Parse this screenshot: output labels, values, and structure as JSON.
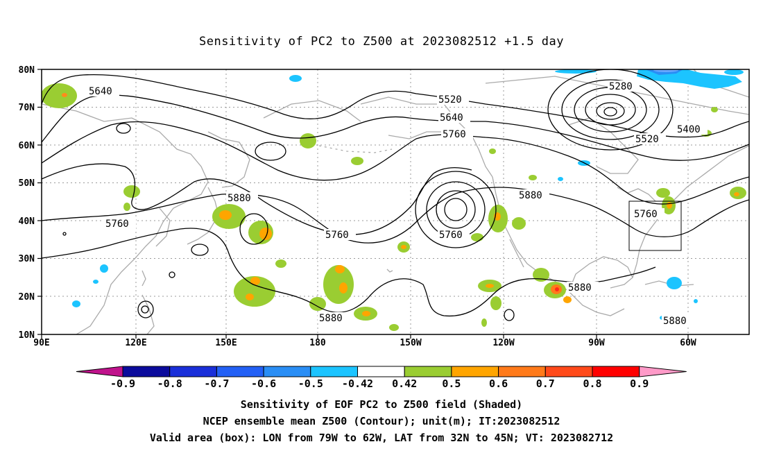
{
  "title": "Sensitivity of PC2 to Z500 at 2023082512 +1.5 day",
  "lat_labels": [
    "80N",
    "70N",
    "60N",
    "50N",
    "40N",
    "30N",
    "20N",
    "10N"
  ],
  "lon_labels": [
    "90E",
    "120E",
    "150E",
    "180",
    "150W",
    "120W",
    "90W",
    "60W"
  ],
  "contour_labels": [
    "5640",
    "5520",
    "5640",
    "5760",
    "5280",
    "5400",
    "5520",
    "5880",
    "5880",
    "5760",
    "5760",
    "5760",
    "5760",
    "5880",
    "5880",
    "5880"
  ],
  "colorbar": {
    "ticks": [
      "-0.9",
      "-0.8",
      "-0.7",
      "-0.6",
      "-0.5",
      "-0.42",
      "0.42",
      "0.5",
      "0.6",
      "0.7",
      "0.8",
      "0.9"
    ],
    "colors": [
      "#0b0b9c",
      "#1a2fd9",
      "#2360f5",
      "#2a8ef5",
      "#1cc4ff",
      "#ffffff",
      "#9acd32",
      "#ffa500",
      "#ff7a1a",
      "#ff4a1a",
      "#ff0000"
    ],
    "left_arrow_color": "#c0138c",
    "right_arrow_color": "#ff9ac8"
  },
  "captions": [
    "Sensitivity of EOF PC2 to Z500 field (Shaded)",
    "NCEP ensemble mean Z500 (Contour); unit(m); IT:2023082512",
    "Valid area (box): LON from 79W to 62W, LAT from 32N to 45N; VT: 2023082712"
  ]
}
